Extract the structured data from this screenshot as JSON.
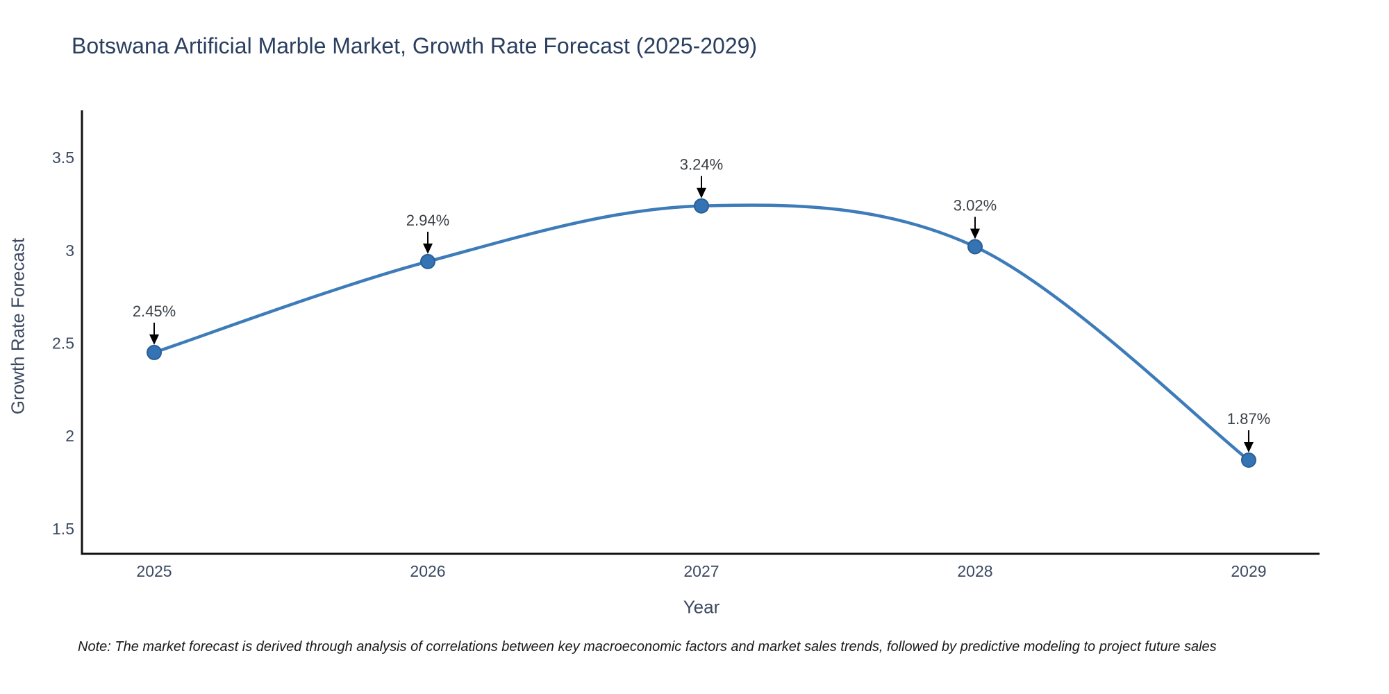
{
  "title": {
    "text": "Botswana Artificial Marble Market, Growth Rate Forecast (2025-2029)",
    "color": "#2a3f5f"
  },
  "note": {
    "text": "Note: The market forecast is derived through analysis of correlations between key macroeconomic factors and market sales trends, followed by predictive modeling to project future sales"
  },
  "chart_data": {
    "type": "line",
    "title": "Botswana Artificial Marble Market, Growth Rate Forecast (2025-2029)",
    "xlabel": "Year",
    "ylabel": "Growth Rate Forecast",
    "x": [
      2025,
      2026,
      2027,
      2028,
      2029
    ],
    "series": [
      {
        "name": "Growth Rate Forecast",
        "values": [
          2.45,
          2.94,
          3.24,
          3.02,
          1.87
        ]
      }
    ],
    "point_labels": [
      "2.45%",
      "2.94%",
      "3.24%",
      "3.02%",
      "1.87%"
    ],
    "xticks": {
      "values": [
        2025,
        2026,
        2027,
        2028,
        2029
      ],
      "labels": [
        "2025",
        "2026",
        "2027",
        "2028",
        "2029"
      ]
    },
    "yticks": {
      "values": [
        1.5,
        2,
        2.5,
        3,
        3.5
      ],
      "labels": [
        "1.5",
        "2",
        "2.5",
        "3",
        "3.5"
      ]
    },
    "xlim": [
      2024.736,
      2029.259
    ],
    "ylim": [
      1.365,
      3.755
    ],
    "grid": false,
    "legend": "none",
    "curve": "spline",
    "annotations": "arrow-down-to-point",
    "colors": {
      "line": "#3e7cb9",
      "marker_fill": "#3474b5",
      "marker_edge": "#2a5f94",
      "axis": "#111111",
      "tick_label": "#3c4961",
      "axis_title": "#3c4961",
      "annotation_text": "#3a4047",
      "arrow": "#000000"
    }
  }
}
